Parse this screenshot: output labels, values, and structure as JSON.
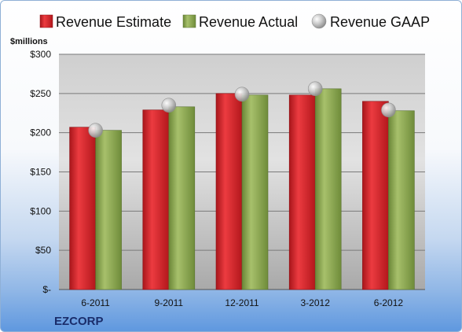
{
  "chart_data": {
    "type": "bar",
    "unit_label": "$millions",
    "categories": [
      "6-2011",
      "9-2011",
      "12-2011",
      "3-2012",
      "6-2012"
    ],
    "series": [
      {
        "name": "Revenue Estimate",
        "kind": "bar",
        "color": "#d42127",
        "values": [
          207,
          229,
          250,
          248,
          240
        ]
      },
      {
        "name": "Revenue Actual",
        "kind": "bar",
        "color": "#86a34a",
        "values": [
          203,
          233,
          248,
          256,
          228
        ]
      },
      {
        "name": "Revenue GAAP",
        "kind": "marker",
        "color": "#b8b8b8",
        "values": [
          203,
          235,
          249,
          256,
          229
        ]
      }
    ],
    "y_ticks": [
      {
        "value": 0,
        "label": "$-"
      },
      {
        "value": 50,
        "label": "$50"
      },
      {
        "value": 100,
        "label": "$100"
      },
      {
        "value": 150,
        "label": "$150"
      },
      {
        "value": 200,
        "label": "$200"
      },
      {
        "value": 250,
        "label": "$250"
      },
      {
        "value": 300,
        "label": "$300"
      }
    ],
    "ylim": [
      0,
      300
    ],
    "grid": true,
    "legend_position": "top"
  },
  "company_label": "EZCORP"
}
